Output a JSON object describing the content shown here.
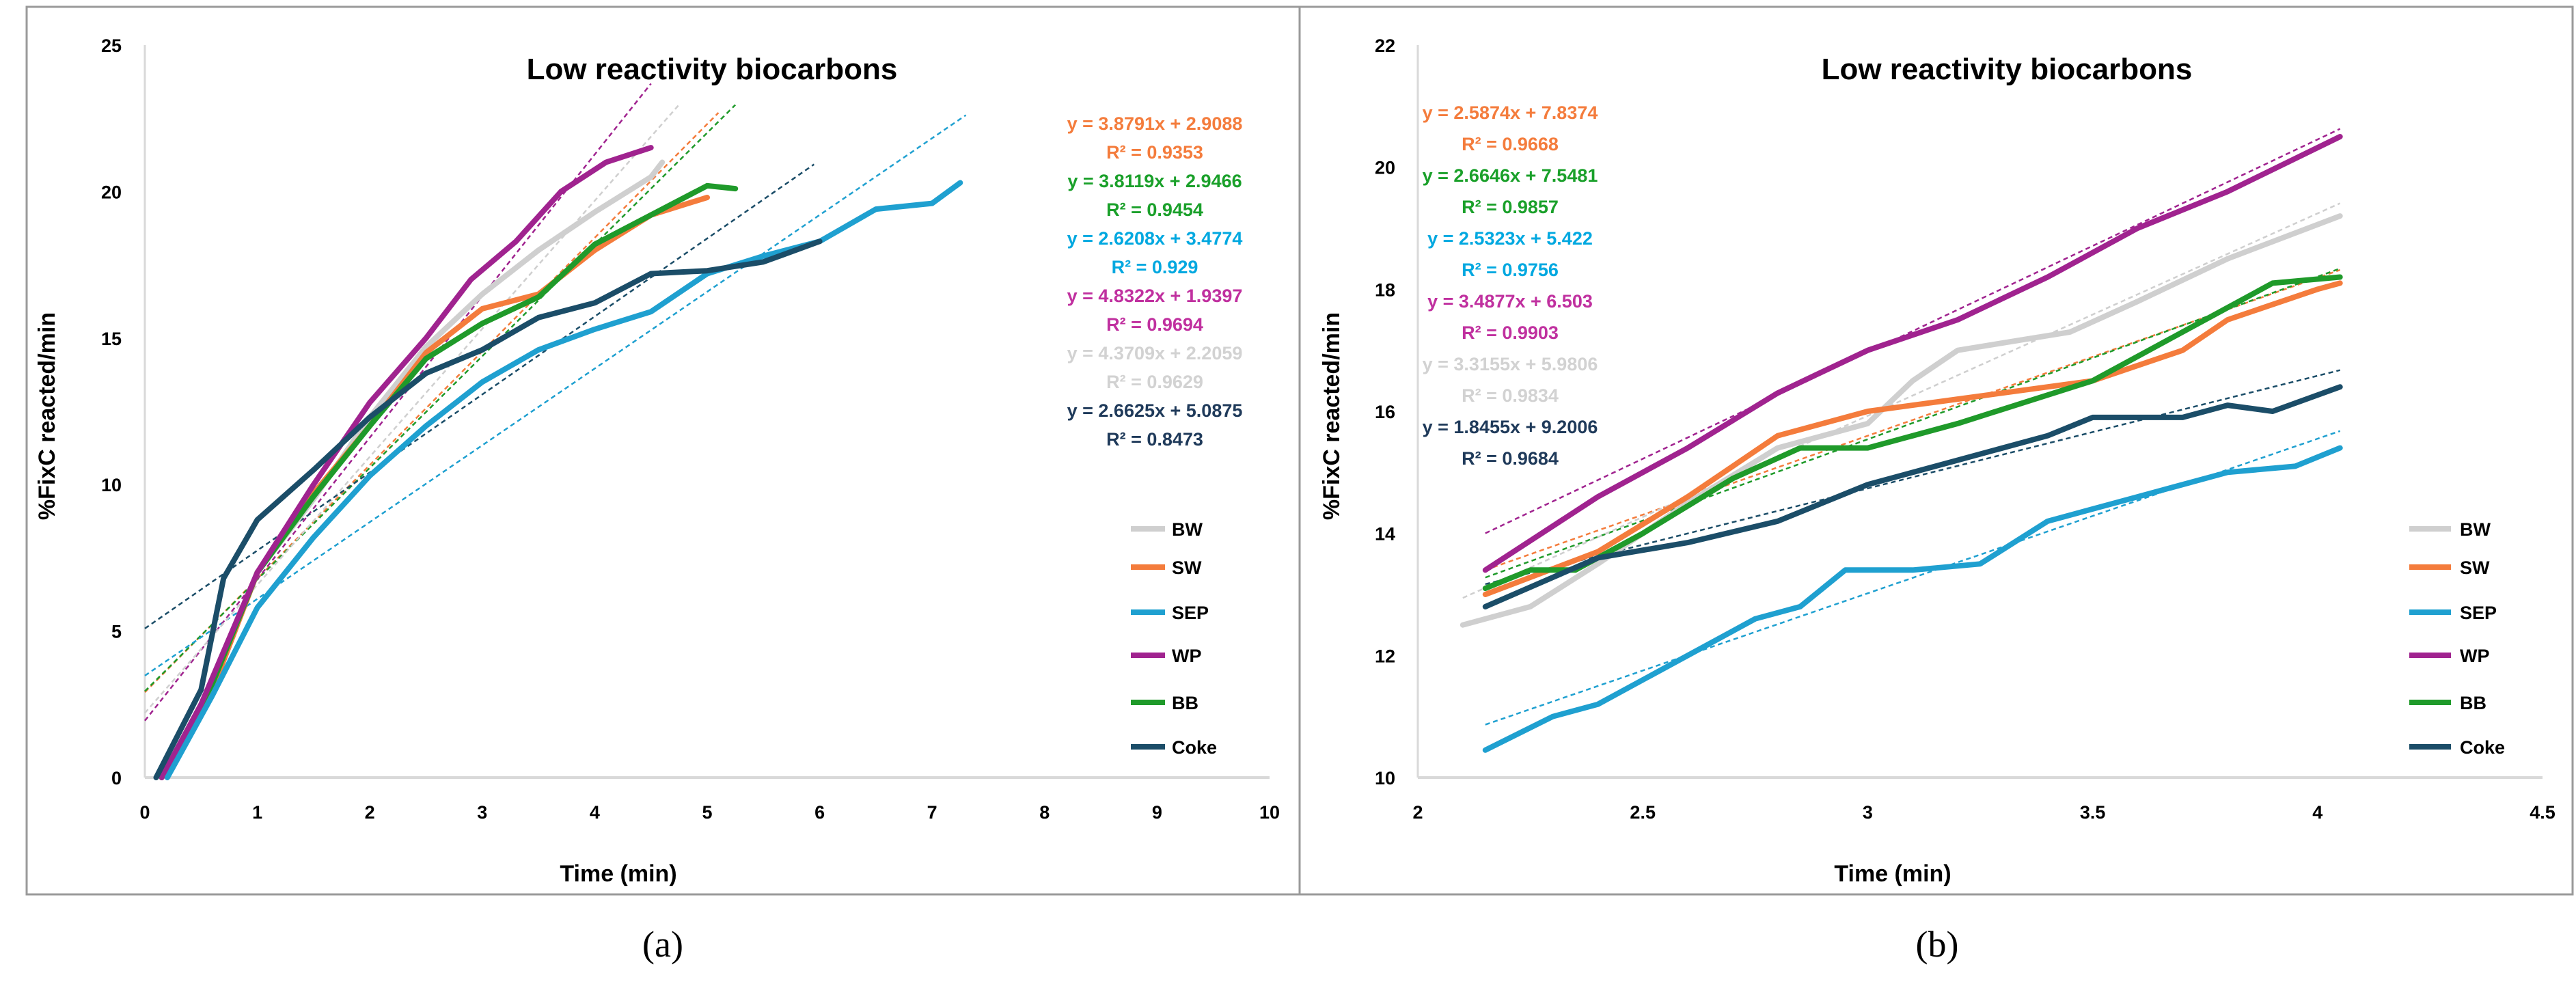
{
  "colors": {
    "BW": "#cfcfcf",
    "SW": "#f47c3c",
    "SEP": "#1fa0d0",
    "WP": "#a0238f",
    "BB": "#1f9a2a",
    "Coke": "#1b4d68"
  },
  "eq_colors": {
    "SW": "#f47c3c",
    "BB": "#1aa02a",
    "SEP": "#00a8e0",
    "WP": "#c0309f",
    "BW": "#d2d2d2",
    "Coke": "#1f3a5a"
  },
  "chart_data": [
    {
      "type": "line",
      "panel_label": "(a)",
      "title": "Low reactivity biocarbons",
      "xlabel": "Time (min)",
      "ylabel": "%FixC reacted/min",
      "xlim": [
        0,
        10
      ],
      "ylim": [
        0,
        25
      ],
      "xticks": [
        "0",
        "1",
        "2",
        "3",
        "4",
        "5",
        "6",
        "7",
        "8",
        "9",
        "10"
      ],
      "yticks": [
        "0",
        "5",
        "10",
        "15",
        "20",
        "25"
      ],
      "legend_position": "right",
      "legend": [
        "BW",
        "SW",
        "SEP",
        "WP",
        "BB",
        "Coke"
      ],
      "series": [
        {
          "name": "BW",
          "x": [
            0.15,
            0.6,
            1,
            1.5,
            2,
            2.5,
            3,
            3.5,
            4,
            4.5,
            4.6
          ],
          "y": [
            0,
            3,
            7,
            9.5,
            12.3,
            14.7,
            16.5,
            18,
            19.3,
            20.5,
            21
          ]
        },
        {
          "name": "SW",
          "x": [
            0.15,
            0.6,
            1,
            1.5,
            2,
            2.5,
            3,
            3.5,
            4,
            4.5,
            5
          ],
          "y": [
            0,
            3,
            7,
            9.7,
            12,
            14.5,
            16,
            16.5,
            18,
            19.2,
            19.8
          ]
        },
        {
          "name": "SEP",
          "x": [
            0.2,
            0.6,
            1,
            1.5,
            2,
            2.5,
            3,
            3.5,
            4,
            4.5,
            5,
            5.5,
            6,
            6.5,
            7,
            7.25
          ],
          "y": [
            0,
            2.8,
            5.8,
            8.2,
            10.3,
            12,
            13.5,
            14.6,
            15.3,
            15.9,
            17.2,
            17.8,
            18.3,
            19.4,
            19.6,
            20.3
          ]
        },
        {
          "name": "WP",
          "x": [
            0.15,
            0.5,
            1,
            1.5,
            2,
            2.5,
            2.9,
            3.3,
            3.7,
            4.1,
            4.5
          ],
          "y": [
            0,
            2.5,
            7,
            10,
            12.8,
            15,
            17,
            18.3,
            20,
            21,
            21.5
          ]
        },
        {
          "name": "BB",
          "x": [
            0.15,
            0.6,
            1,
            1.5,
            2,
            2.5,
            3,
            3.5,
            4,
            4.5,
            5,
            5.25
          ],
          "y": [
            0,
            3.2,
            7,
            9.6,
            12,
            14.3,
            15.5,
            16.4,
            18.2,
            19.2,
            20.2,
            20.1
          ]
        },
        {
          "name": "Coke",
          "x": [
            0.1,
            0.5,
            0.7,
            1,
            1.5,
            2,
            2.5,
            3,
            3.5,
            4,
            4.5,
            5,
            5.5,
            6
          ],
          "y": [
            0,
            3,
            6.8,
            8.8,
            10.5,
            12.3,
            13.8,
            14.6,
            15.7,
            16.2,
            17.2,
            17.3,
            17.6,
            18.3
          ]
        }
      ],
      "trendlines": [
        {
          "name": "SW",
          "slope": 3.8791,
          "intercept": 2.9088,
          "x_range": [
            0,
            5.1
          ],
          "equation": "y = 3.8791x + 2.9088",
          "r2": "R² = 0.9353"
        },
        {
          "name": "BB",
          "slope": 3.8119,
          "intercept": 2.9466,
          "x_range": [
            0,
            5.25
          ],
          "equation": "y = 3.8119x + 2.9466",
          "r2": "R² = 0.9454"
        },
        {
          "name": "SEP",
          "slope": 2.6208,
          "intercept": 3.4774,
          "x_range": [
            0,
            7.3
          ],
          "equation": "y = 2.6208x + 3.4774",
          "r2": "R² = 0.929"
        },
        {
          "name": "WP",
          "slope": 4.8322,
          "intercept": 1.9397,
          "x_range": [
            0,
            4.5
          ],
          "equation": "y = 4.8322x + 1.9397",
          "r2": "R² = 0.9694"
        },
        {
          "name": "BW",
          "slope": 4.3709,
          "intercept": 2.2059,
          "x_range": [
            0,
            4.75
          ],
          "equation": "y = 4.3709x + 2.2059",
          "r2": "R² = 0.9629"
        },
        {
          "name": "Coke",
          "slope": 2.6625,
          "intercept": 5.0875,
          "x_range": [
            0,
            5.95
          ],
          "equation": "y = 2.6625x + 5.0875",
          "r2": "R² = 0.8473"
        }
      ]
    },
    {
      "type": "line",
      "panel_label": "(b)",
      "title": "Low reactivity biocarbons",
      "xlabel": "Time (min)",
      "ylabel": "%FixC reacted/min",
      "xlim": [
        2,
        4.5
      ],
      "ylim": [
        10,
        22
      ],
      "xticks": [
        "2",
        "2.5",
        "3",
        "3.5",
        "4",
        "4.5"
      ],
      "yticks": [
        "10",
        "12",
        "14",
        "16",
        "18",
        "20",
        "22"
      ],
      "legend_position": "right",
      "legend": [
        "BW",
        "SW",
        "SEP",
        "WP",
        "BB",
        "Coke"
      ],
      "series": [
        {
          "name": "BW",
          "x": [
            2.1,
            2.25,
            2.4,
            2.6,
            2.8,
            3,
            3.1,
            3.2,
            3.45,
            3.6,
            3.8,
            4.05
          ],
          "y": [
            12.5,
            12.8,
            13.5,
            14.5,
            15.4,
            15.8,
            16.5,
            17,
            17.3,
            17.8,
            18.5,
            19.2
          ]
        },
        {
          "name": "SW",
          "x": [
            2.15,
            2.4,
            2.6,
            2.8,
            3,
            3.2,
            3.5,
            3.7,
            3.8,
            4,
            4.05
          ],
          "y": [
            13,
            13.7,
            14.6,
            15.6,
            16,
            16.2,
            16.5,
            17,
            17.5,
            18,
            18.1
          ]
        },
        {
          "name": "SEP",
          "x": [
            2.15,
            2.3,
            2.4,
            2.55,
            2.75,
            2.85,
            2.95,
            3.1,
            3.25,
            3.4,
            3.6,
            3.8,
            3.95,
            4.05
          ],
          "y": [
            10.45,
            11,
            11.2,
            11.8,
            12.6,
            12.8,
            13.4,
            13.4,
            13.5,
            14.2,
            14.6,
            15,
            15.1,
            15.4
          ]
        },
        {
          "name": "WP",
          "x": [
            2.15,
            2.4,
            2.6,
            2.8,
            3,
            3.2,
            3.4,
            3.6,
            3.8,
            4.05
          ],
          "y": [
            13.4,
            14.6,
            15.4,
            16.3,
            17,
            17.5,
            18.2,
            19,
            19.6,
            20.5
          ]
        },
        {
          "name": "BB",
          "x": [
            2.15,
            2.25,
            2.35,
            2.5,
            2.7,
            2.85,
            3,
            3.2,
            3.5,
            3.7,
            3.9,
            4.05
          ],
          "y": [
            13.1,
            13.4,
            13.4,
            14,
            14.9,
            15.4,
            15.4,
            15.8,
            16.5,
            17.3,
            18.1,
            18.2
          ]
        },
        {
          "name": "Coke",
          "x": [
            2.15,
            2.4,
            2.6,
            2.8,
            3,
            3.2,
            3.4,
            3.5,
            3.7,
            3.8,
            3.9,
            4.05
          ],
          "y": [
            12.8,
            13.6,
            13.85,
            14.2,
            14.8,
            15.2,
            15.6,
            15.9,
            15.9,
            16.1,
            16,
            16.4
          ]
        }
      ],
      "trendlines": [
        {
          "name": "SW",
          "slope": 2.5874,
          "intercept": 7.8374,
          "x_range": [
            2.15,
            4.05
          ],
          "equation": "y = 2.5874x + 7.8374",
          "r2": "R² = 0.9668"
        },
        {
          "name": "BB",
          "slope": 2.6646,
          "intercept": 7.5481,
          "x_range": [
            2.15,
            4.05
          ],
          "equation": "y = 2.6646x + 7.5481",
          "r2": "R² = 0.9857"
        },
        {
          "name": "SEP",
          "slope": 2.5323,
          "intercept": 5.422,
          "x_range": [
            2.15,
            4.05
          ],
          "equation": "y = 2.5323x + 5.422",
          "r2": "R² = 0.9756"
        },
        {
          "name": "WP",
          "slope": 3.4877,
          "intercept": 6.503,
          "x_range": [
            2.15,
            4.05
          ],
          "equation": "y = 3.4877x + 6.503",
          "r2": "R² = 0.9903"
        },
        {
          "name": "BW",
          "slope": 3.3155,
          "intercept": 5.9806,
          "x_range": [
            2.1,
            4.05
          ],
          "equation": "y = 3.3155x + 5.9806",
          "r2": "R² = 0.9834"
        },
        {
          "name": "Coke",
          "slope": 1.8455,
          "intercept": 9.2006,
          "x_range": [
            2.15,
            4.05
          ],
          "equation": "y = 1.8455x + 9.2006",
          "r2": "R² = 0.9684"
        }
      ]
    }
  ]
}
